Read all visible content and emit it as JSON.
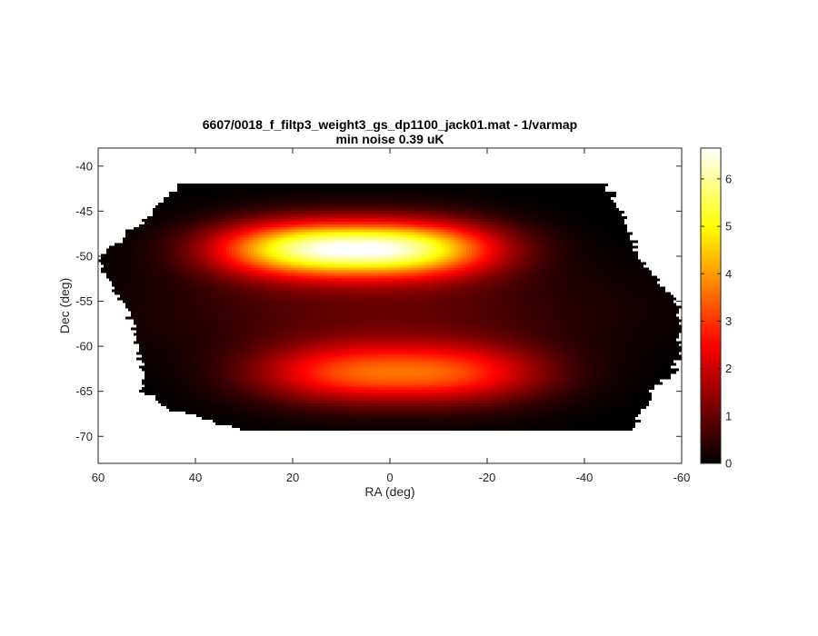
{
  "chart_data": {
    "type": "heatmap",
    "title": "6607/0018_f_filtp3_weight3_gs_dp1100_jack01.mat - 1/varmap",
    "subtitle": "min noise 0.39 uK",
    "xlabel": "RA (deg)",
    "ylabel": "Dec (deg)",
    "xlim": [
      60,
      -60
    ],
    "ylim": [
      -73,
      -38
    ],
    "x_ticks": [
      60,
      40,
      20,
      0,
      -20,
      -40,
      -60
    ],
    "x_tick_labels": [
      "60",
      "40",
      "20",
      "0",
      "-20",
      "-40",
      "-60"
    ],
    "y_ticks": [
      -40,
      -45,
      -50,
      -55,
      -60,
      -65,
      -70
    ],
    "y_tick_labels": [
      "-40",
      "-45",
      "-50",
      "-55",
      "-60",
      "-65",
      "-70"
    ],
    "colorbar": {
      "colormap": "hot",
      "range": [
        0,
        6.65
      ],
      "ticks": [
        0,
        1,
        2,
        3,
        4,
        5,
        6
      ],
      "tick_labels": [
        "0",
        "1",
        "2",
        "3",
        "4",
        "5",
        "6"
      ]
    },
    "field": {
      "dec_top": -41.8,
      "dec_bottom": -69.5,
      "outline": [
        {
          "dec": -41.8,
          "ra_left": 42.0,
          "ra_right": -44.0
        },
        {
          "dec": -44.0,
          "ra_left": 47.0,
          "ra_right": -47.0
        },
        {
          "dec": -46.5,
          "ra_left": 52.0,
          "ra_right": -49.0
        },
        {
          "dec": -48.5,
          "ra_left": 56.0,
          "ra_right": -50.5
        },
        {
          "dec": -50.5,
          "ra_left": 60.0,
          "ra_right": -52.0
        },
        {
          "dec": -53.0,
          "ra_left": 58.0,
          "ra_right": -55.5
        },
        {
          "dec": -55.0,
          "ra_left": 55.0,
          "ra_right": -59.0
        },
        {
          "dec": -58.0,
          "ra_left": 53.0,
          "ra_right": -60.0
        },
        {
          "dec": -61.0,
          "ra_left": 52.0,
          "ra_right": -60.0
        },
        {
          "dec": -63.0,
          "ra_left": 51.0,
          "ra_right": -58.0
        },
        {
          "dec": -65.0,
          "ra_left": 51.0,
          "ra_right": -54.0
        },
        {
          "dec": -67.0,
          "ra_left": 45.0,
          "ra_right": -52.0
        },
        {
          "dec": -69.5,
          "ra_left": 30.0,
          "ra_right": -50.0
        }
      ],
      "peaks": [
        {
          "ra_center": 7.0,
          "dec_center": -49.2,
          "ra_sigma": 21.0,
          "dec_sigma": 2.2,
          "value": 6.65
        },
        {
          "ra_center": -2.0,
          "dec_center": -63.0,
          "ra_sigma": 22.0,
          "dec_sigma": 2.4,
          "value": 3.5
        }
      ]
    }
  }
}
